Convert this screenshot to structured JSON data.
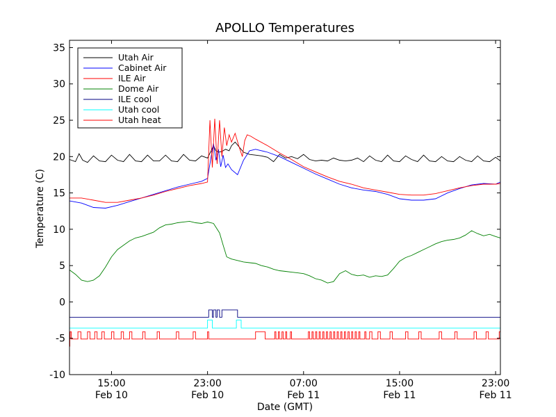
{
  "chart_data": {
    "type": "line",
    "title": "APOLLO Temperatures",
    "xlabel": "Date (GMT)",
    "ylabel": "Temperature (C)",
    "xlim": [
      11.5,
      47.4
    ],
    "ylim": [
      -10,
      36
    ],
    "grid": false,
    "legend_position": "top-left",
    "yticks": [
      -10,
      -5,
      0,
      5,
      10,
      15,
      20,
      25,
      30,
      35
    ],
    "ytick_labels": [
      "-10",
      "-5",
      "0",
      "5",
      "10",
      "15",
      "20",
      "25",
      "30",
      "35"
    ],
    "xticks": [
      {
        "value": 15,
        "time": "15:00",
        "date": "Feb 10"
      },
      {
        "value": 23,
        "time": "23:00",
        "date": "Feb 10"
      },
      {
        "value": 31,
        "time": "07:00",
        "date": "Feb 11"
      },
      {
        "value": 39,
        "time": "15:00",
        "date": "Feb 11"
      },
      {
        "value": 47,
        "time": "23:00",
        "date": "Feb 11"
      }
    ],
    "series": [
      {
        "name": "Utah Air",
        "color": "#000000",
        "x": [
          11.5,
          12.0,
          12.3,
          12.6,
          13.0,
          13.5,
          14.0,
          14.5,
          15.0,
          15.5,
          16.0,
          16.5,
          17.0,
          17.5,
          18.0,
          18.5,
          19.0,
          19.5,
          20.0,
          20.5,
          21.0,
          21.5,
          22.0,
          22.5,
          23.0,
          23.3,
          23.5,
          23.7,
          23.9,
          24.2,
          24.5,
          24.8,
          25.0,
          25.3,
          25.7,
          26.0,
          26.5,
          27.0,
          27.5,
          28.0,
          28.5,
          29.0,
          29.5,
          30.0,
          30.5,
          31.0,
          31.5,
          32.0,
          32.5,
          33.0,
          33.5,
          34.0,
          34.5,
          35.0,
          35.5,
          36.0,
          36.5,
          37.0,
          37.5,
          38.0,
          38.5,
          39.0,
          39.5,
          40.0,
          40.5,
          41.0,
          41.5,
          42.0,
          42.5,
          43.0,
          43.5,
          44.0,
          44.5,
          45.0,
          45.5,
          46.0,
          46.5,
          47.0,
          47.4
        ],
        "y": [
          19.6,
          19.3,
          20.4,
          19.5,
          19.2,
          20.1,
          19.4,
          19.3,
          20.2,
          19.5,
          19.3,
          20.3,
          19.4,
          19.3,
          20.2,
          19.4,
          19.4,
          20.2,
          19.4,
          19.3,
          20.3,
          19.5,
          19.4,
          20.1,
          19.8,
          20.8,
          21.5,
          20.8,
          20.6,
          20.7,
          21.0,
          20.8,
          21.5,
          22.0,
          21.2,
          20.6,
          20.3,
          20.2,
          20.1,
          19.9,
          19.3,
          20.3,
          19.8,
          20.0,
          19.7,
          20.3,
          19.6,
          19.4,
          19.5,
          19.4,
          19.8,
          19.5,
          19.4,
          19.5,
          19.8,
          19.3,
          20.1,
          19.5,
          19.3,
          20.2,
          19.4,
          19.3,
          20.1,
          19.6,
          19.3,
          20.2,
          19.4,
          19.3,
          20.0,
          19.4,
          19.3,
          20.0,
          19.5,
          19.3,
          20.1,
          19.4,
          19.3,
          19.9,
          19.4
        ]
      },
      {
        "name": "Cabinet Air",
        "color": "#0000ff",
        "x": [
          11.5,
          12.5,
          13.5,
          14.5,
          15.5,
          16.5,
          17.5,
          18.5,
          19.5,
          20.5,
          21.5,
          22.5,
          23.0,
          23.3,
          23.5,
          23.7,
          23.9,
          24.1,
          24.3,
          24.5,
          24.7,
          25.0,
          25.5,
          26.0,
          26.5,
          27.0,
          28.0,
          29.0,
          30.0,
          31.0,
          32.0,
          33.0,
          34.0,
          35.0,
          36.0,
          37.0,
          38.0,
          39.0,
          40.0,
          41.0,
          42.0,
          43.0,
          44.0,
          45.0,
          46.0,
          47.0,
          47.4
        ],
        "y": [
          13.9,
          13.6,
          13.0,
          12.9,
          13.3,
          13.8,
          14.3,
          14.8,
          15.3,
          15.8,
          16.2,
          16.6,
          17.0,
          20.0,
          21.8,
          19.5,
          21.0,
          18.6,
          20.2,
          18.5,
          19.0,
          18.2,
          17.5,
          19.5,
          20.8,
          21.0,
          20.6,
          20.0,
          19.2,
          18.4,
          17.6,
          16.9,
          16.2,
          15.7,
          15.4,
          15.2,
          14.8,
          14.2,
          14.0,
          14.0,
          14.2,
          15.0,
          15.6,
          16.1,
          16.3,
          16.2,
          16.5
        ]
      },
      {
        "name": "ILE Air",
        "color": "#ff0000",
        "x": [
          11.5,
          12.5,
          13.5,
          14.5,
          15.5,
          16.5,
          17.5,
          18.5,
          19.5,
          20.5,
          21.5,
          22.5,
          23.0,
          23.2,
          23.4,
          23.6,
          23.8,
          24.0,
          24.2,
          24.4,
          24.6,
          24.8,
          25.0,
          25.3,
          25.6,
          25.9,
          26.1,
          26.3,
          26.6,
          27.0,
          28.0,
          29.0,
          30.0,
          31.0,
          32.0,
          33.0,
          34.0,
          35.0,
          36.0,
          37.0,
          38.0,
          39.0,
          40.0,
          41.0,
          42.0,
          43.0,
          44.0,
          45.0,
          46.0,
          47.0,
          47.4
        ],
        "y": [
          14.3,
          14.3,
          14.0,
          13.7,
          13.7,
          14.0,
          14.3,
          14.7,
          15.2,
          15.6,
          16.0,
          16.3,
          16.5,
          25.0,
          18.5,
          25.2,
          19.0,
          25.0,
          20.0,
          24.0,
          21.5,
          23.0,
          22.0,
          23.2,
          21.5,
          20.0,
          22.2,
          23.0,
          22.8,
          22.4,
          21.5,
          20.5,
          19.6,
          18.6,
          17.9,
          17.2,
          16.6,
          16.2,
          15.7,
          15.4,
          15.1,
          14.8,
          14.7,
          14.7,
          14.9,
          15.3,
          15.7,
          16.0,
          16.2,
          16.2,
          16.3
        ]
      },
      {
        "name": "Dome Air",
        "color": "#008000",
        "x": [
          11.5,
          12.0,
          12.5,
          13.0,
          13.5,
          14.0,
          14.5,
          15.0,
          15.5,
          16.0,
          16.5,
          17.0,
          17.5,
          18.0,
          18.5,
          19.0,
          19.5,
          20.0,
          20.5,
          21.0,
          21.5,
          22.0,
          22.5,
          23.0,
          23.5,
          24.0,
          24.3,
          24.6,
          25.0,
          25.5,
          26.0,
          26.5,
          27.0,
          27.5,
          28.0,
          28.5,
          29.0,
          29.5,
          30.0,
          30.5,
          31.0,
          31.5,
          32.0,
          32.5,
          33.0,
          33.5,
          34.0,
          34.5,
          35.0,
          35.5,
          36.0,
          36.5,
          37.0,
          37.5,
          38.0,
          38.5,
          39.0,
          39.5,
          40.0,
          40.5,
          41.0,
          41.5,
          42.0,
          42.5,
          43.0,
          43.5,
          44.0,
          44.5,
          45.0,
          45.5,
          46.0,
          46.5,
          47.0,
          47.4
        ],
        "y": [
          4.4,
          3.8,
          3.0,
          2.8,
          3.0,
          3.6,
          4.8,
          6.2,
          7.2,
          7.8,
          8.4,
          8.8,
          9.0,
          9.3,
          9.6,
          10.2,
          10.6,
          10.7,
          10.9,
          11.0,
          11.1,
          10.9,
          10.8,
          11.0,
          10.8,
          9.5,
          7.8,
          6.2,
          5.9,
          5.7,
          5.5,
          5.4,
          5.3,
          5.0,
          4.8,
          4.5,
          4.3,
          4.2,
          4.1,
          4.0,
          3.9,
          3.6,
          3.2,
          3.0,
          2.6,
          2.8,
          3.9,
          4.3,
          3.8,
          3.6,
          3.7,
          3.4,
          3.6,
          3.5,
          3.7,
          4.6,
          5.6,
          6.1,
          6.4,
          6.8,
          7.2,
          7.6,
          8.0,
          8.3,
          8.5,
          8.6,
          8.8,
          9.2,
          9.8,
          9.4,
          9.1,
          9.3,
          9.0,
          8.8
        ]
      },
      {
        "name": "ILE cool",
        "color": "#000080",
        "x": [
          11.5,
          23.1,
          23.1,
          23.4,
          23.4,
          23.5,
          23.5,
          23.7,
          23.7,
          23.8,
          23.8,
          24.0,
          24.0,
          24.2,
          24.2,
          25.5,
          25.5,
          47.4
        ],
        "y": [
          -2.1,
          -2.1,
          -1.1,
          -1.1,
          -2.1,
          -2.1,
          -1.1,
          -1.1,
          -2.1,
          -2.1,
          -1.1,
          -1.1,
          -2.1,
          -2.1,
          -1.1,
          -1.1,
          -2.1,
          -2.1
        ]
      },
      {
        "name": "Utah cool",
        "color": "#00ffff",
        "x": [
          11.5,
          23.0,
          23.0,
          23.4,
          23.4,
          25.4,
          25.4,
          25.8,
          25.8,
          47.4
        ],
        "y": [
          -3.6,
          -3.6,
          -2.5,
          -2.5,
          -3.6,
          -3.6,
          -2.5,
          -2.5,
          -3.6,
          -3.6
        ],
        "note": "level -3.6, on-state -2.5"
      },
      {
        "name": "Utah heat",
        "color": "#ff0000",
        "baseline": -5.1,
        "on_level": -4.1,
        "pulses": [
          [
            11.55,
            11.65
          ],
          [
            12.2,
            12.45
          ],
          [
            13.0,
            13.2
          ],
          [
            13.6,
            13.8
          ],
          [
            14.2,
            14.4
          ],
          [
            15.0,
            15.2
          ],
          [
            15.8,
            16.0
          ],
          [
            16.5,
            16.7
          ],
          [
            17.6,
            17.8
          ],
          [
            18.8,
            19.0
          ],
          [
            20.4,
            20.6
          ],
          [
            21.8,
            22.0
          ],
          [
            23.0,
            23.1
          ],
          [
            27.0,
            27.8
          ],
          [
            28.6,
            28.7
          ],
          [
            28.9,
            29.0
          ],
          [
            29.2,
            29.3
          ],
          [
            29.5,
            29.6
          ],
          [
            29.9,
            30.0
          ],
          [
            31.4,
            31.5
          ],
          [
            31.7,
            31.8
          ],
          [
            32.0,
            32.1
          ],
          [
            32.3,
            32.4
          ],
          [
            32.6,
            32.7
          ],
          [
            32.9,
            33.0
          ],
          [
            33.2,
            33.3
          ],
          [
            33.5,
            33.6
          ],
          [
            33.8,
            33.9
          ],
          [
            34.1,
            34.2
          ],
          [
            34.4,
            34.5
          ],
          [
            34.7,
            34.8
          ],
          [
            35.0,
            35.1
          ],
          [
            35.3,
            35.4
          ],
          [
            35.6,
            35.7
          ],
          [
            36.1,
            36.2
          ],
          [
            36.5,
            36.7
          ],
          [
            37.2,
            37.4
          ],
          [
            38.2,
            38.4
          ],
          [
            39.5,
            39.7
          ],
          [
            40.6,
            40.8
          ],
          [
            42.3,
            42.5
          ],
          [
            43.6,
            43.8
          ],
          [
            45.2,
            45.4
          ],
          [
            46.2,
            46.4
          ],
          [
            47.3,
            47.4
          ]
        ],
        "dip_start": -6.1
      }
    ]
  }
}
